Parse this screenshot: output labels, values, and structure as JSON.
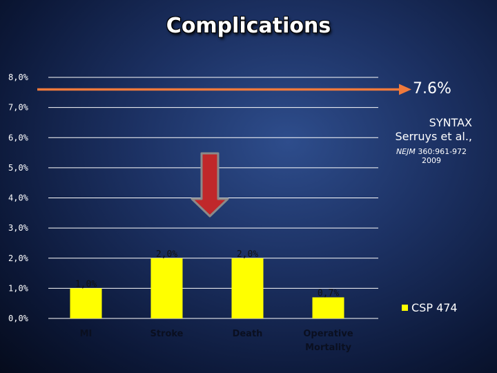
{
  "chart_data": {
    "type": "bar",
    "title": "Complications",
    "categories": [
      "MI",
      "Stroke",
      "Death",
      "Operative Mortality"
    ],
    "series": [
      {
        "name": "CSP 474",
        "values": [
          1.0,
          2.0,
          2.0,
          0.7
        ],
        "color": "#ffff00"
      }
    ],
    "data_labels": [
      "1,0%",
      "2,0%",
      "2,0%",
      "0,7%"
    ],
    "ylim": [
      0,
      8
    ],
    "yticks": [
      0,
      1,
      2,
      3,
      4,
      5,
      6,
      7,
      8
    ],
    "ytick_labels": [
      "0,0%",
      "1,0%",
      "2,0%",
      "3,0%",
      "4,0%",
      "5,0%",
      "6,0%",
      "7,0%",
      "8,0%"
    ],
    "reference": {
      "value": 7.6,
      "label": "7.6%",
      "color": "#f07a3c",
      "source_line1": "SYNTAX",
      "source_line2": "Serruys et al.,",
      "citation_journal": "NEJM",
      "citation_detail": "360:961-972",
      "citation_year": "2009"
    },
    "arrow_color": "#c0282a",
    "legend_position": "right",
    "grid": true
  }
}
